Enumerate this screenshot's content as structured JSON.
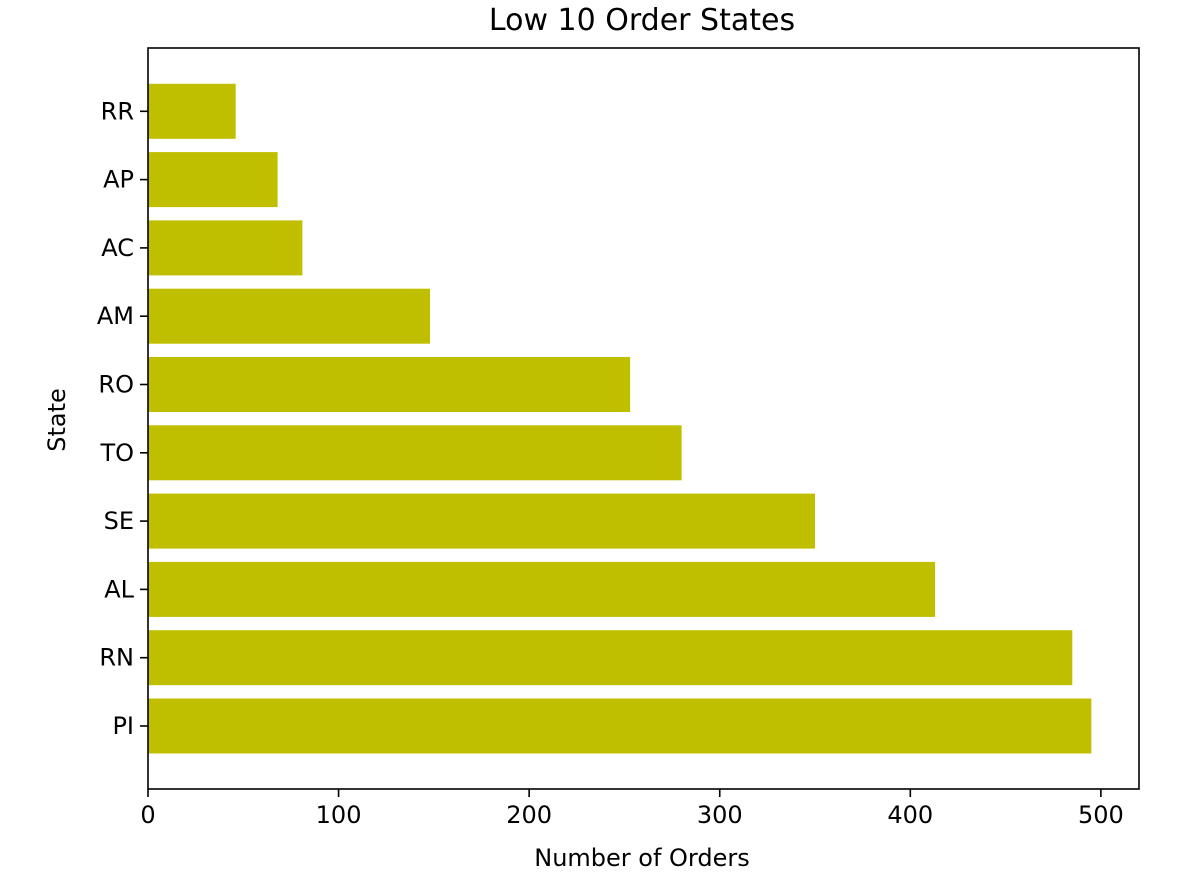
{
  "chart_data": {
    "type": "bar",
    "orientation": "horizontal",
    "title": "Low 10 Order States",
    "xlabel": "Number of Orders",
    "ylabel": "State",
    "categories": [
      "PI",
      "RN",
      "AL",
      "SE",
      "TO",
      "RO",
      "AM",
      "AC",
      "AP",
      "RR"
    ],
    "values": [
      495,
      485,
      413,
      350,
      280,
      253,
      148,
      81,
      68,
      46
    ],
    "xlim": [
      0,
      520
    ],
    "xticks": [
      "0",
      "100",
      "200",
      "300",
      "400",
      "500"
    ],
    "bar_color": "#bfbf00",
    "grid": false,
    "legend": false
  }
}
